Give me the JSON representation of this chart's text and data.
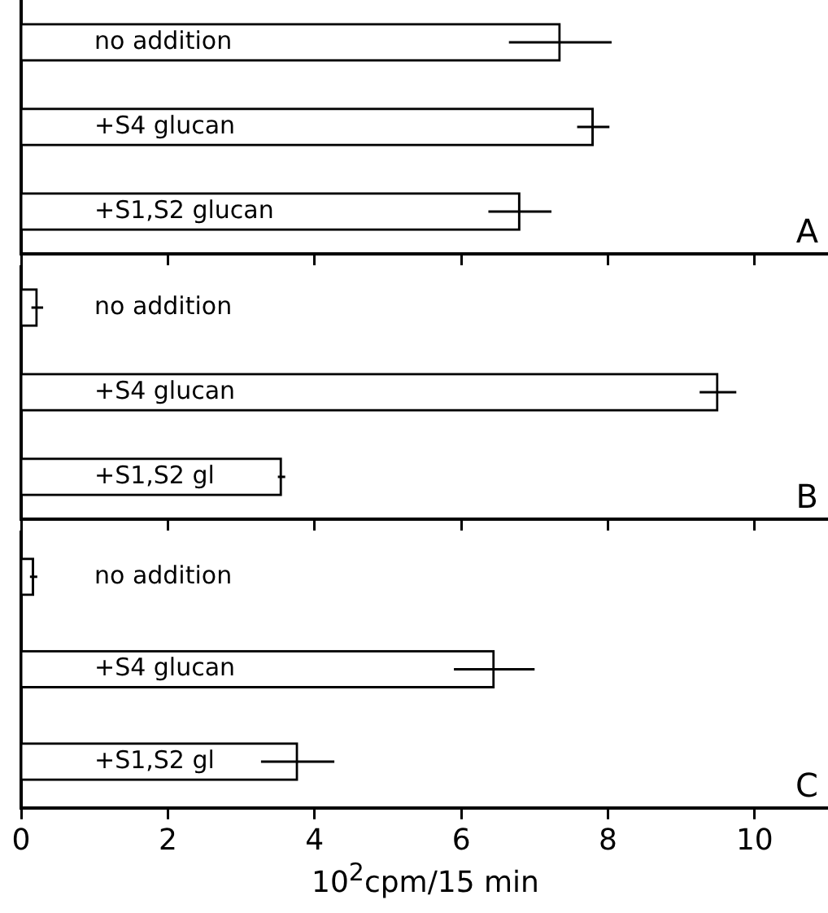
{
  "chart_data": [
    {
      "type": "bar",
      "orientation": "horizontal",
      "title": "A",
      "categories": [
        "no addition",
        "+S4 glucan",
        "+S1,S2 glucan"
      ],
      "values": [
        7.35,
        7.8,
        6.8
      ],
      "errors": [
        0.7,
        0.22,
        0.43
      ],
      "color": "#ffffff",
      "xlim": [
        0,
        11
      ],
      "xticks": [
        0,
        2,
        4,
        6,
        8,
        10
      ],
      "tick_labels": "y"
    },
    {
      "type": "bar",
      "orientation": "horizontal",
      "title": "B",
      "categories": [
        "no addition",
        "+S4 glucan",
        "+S1,S2 gl"
      ],
      "values": [
        0.22,
        9.5,
        3.55
      ],
      "errors": [
        0.08,
        0.25,
        0.05
      ],
      "color": "#ffffff",
      "xlim": [
        0,
        11
      ],
      "xticks": [
        0,
        2,
        4,
        6,
        8,
        10
      ],
      "tick_labels": "y"
    },
    {
      "type": "bar",
      "orientation": "horizontal",
      "title": "C",
      "xlabel": "10$^{2}$cpm/15 min",
      "categories": [
        "no addition",
        "+S4 glucan",
        "+S1,S2 gl"
      ],
      "values": [
        0.17,
        6.45,
        3.77
      ],
      "errors": [
        0.05,
        0.55,
        0.5
      ],
      "color": "#ffffff",
      "xlim": [
        0,
        11
      ],
      "xticks": [
        0,
        2,
        4,
        6,
        8,
        10
      ]
    }
  ]
}
